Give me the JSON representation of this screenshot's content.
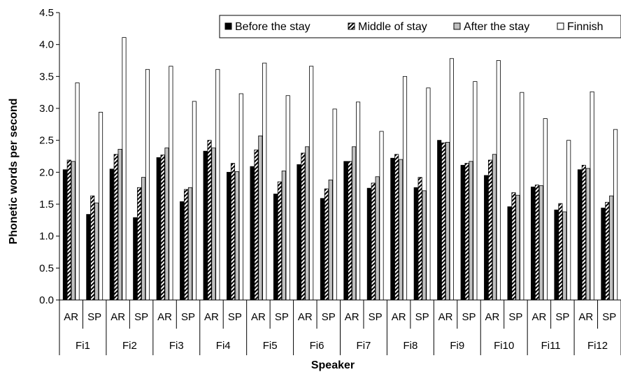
{
  "chart_data": {
    "type": "bar",
    "title": "",
    "xlabel": "Speaker",
    "ylabel": "Phonetic words per second",
    "ylim": [
      0,
      4.5
    ],
    "ytick_step": 0.5,
    "grid": false,
    "legend_position": "top-right",
    "speakers": [
      "Fi1",
      "Fi2",
      "Fi3",
      "Fi4",
      "Fi5",
      "Fi6",
      "Fi7",
      "Fi8",
      "Fi9",
      "Fi10",
      "Fi11",
      "Fi12"
    ],
    "measures": [
      "AR",
      "SP"
    ],
    "categories": [
      "Fi1 AR",
      "Fi1 SP",
      "Fi2 AR",
      "Fi2 SP",
      "Fi3 AR",
      "Fi3 SP",
      "Fi4 AR",
      "Fi4 SP",
      "Fi5 AR",
      "Fi5 SP",
      "Fi6 AR",
      "Fi6 SP",
      "Fi7 AR",
      "Fi7 SP",
      "Fi8 AR",
      "Fi8 SP",
      "Fi9 AR",
      "Fi9 SP",
      "Fi10 AR",
      "Fi10 SP",
      "Fi11 AR",
      "Fi11 SP",
      "Fi12 AR",
      "Fi12 SP"
    ],
    "series": [
      {
        "name": "Before the stay",
        "fill": "solid",
        "values": [
          2.04,
          1.34,
          2.05,
          1.29,
          2.23,
          1.54,
          2.33,
          2.0,
          2.09,
          1.66,
          2.12,
          1.59,
          2.17,
          1.75,
          2.22,
          1.76,
          2.5,
          2.11,
          1.95,
          1.46,
          1.77,
          1.41,
          2.04,
          1.44
        ]
      },
      {
        "name": "Middle of stay",
        "fill": "hatched",
        "values": [
          2.19,
          1.63,
          2.28,
          1.76,
          2.27,
          1.73,
          2.5,
          2.14,
          2.35,
          1.85,
          2.3,
          1.74,
          2.17,
          1.83,
          2.28,
          1.92,
          2.46,
          2.14,
          2.19,
          1.68,
          1.8,
          1.51,
          2.11,
          1.53
        ]
      },
      {
        "name": "After the stay",
        "fill": "gray",
        "values": [
          2.17,
          1.52,
          2.36,
          1.92,
          2.38,
          1.76,
          2.38,
          2.01,
          2.57,
          2.02,
          2.4,
          1.88,
          2.4,
          1.93,
          2.2,
          1.71,
          2.47,
          2.17,
          2.28,
          1.64,
          1.79,
          1.38,
          2.06,
          1.63
        ]
      },
      {
        "name": "Finnish",
        "fill": "white",
        "values": [
          3.4,
          2.94,
          4.11,
          3.61,
          3.66,
          3.11,
          3.61,
          3.23,
          3.71,
          3.2,
          3.66,
          2.99,
          3.1,
          2.64,
          3.5,
          3.32,
          3.78,
          3.42,
          3.75,
          3.25,
          2.84,
          2.5,
          3.26,
          2.67
        ]
      }
    ],
    "colors": {
      "solid": "#000000",
      "hatched": "#ffffff",
      "gray": "#c0c0c0",
      "white": "#ffffff",
      "stroke": "#000000"
    }
  }
}
